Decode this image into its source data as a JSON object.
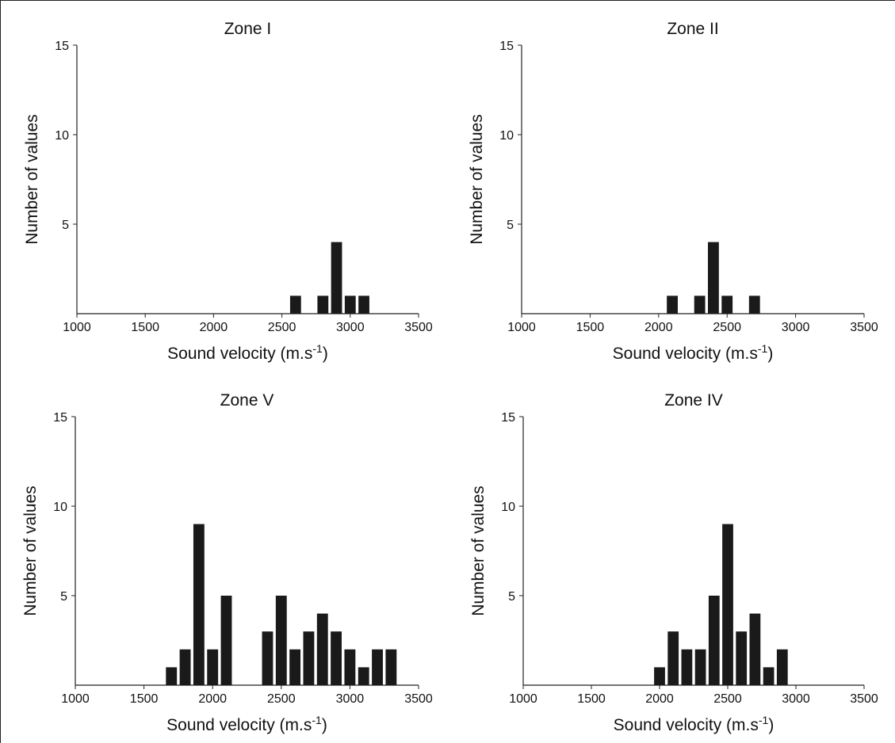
{
  "chart_data": [
    {
      "type": "bar",
      "title": "Zone I",
      "xlabel": "Sound velocity (m.s-1)",
      "xlabel_base": "Sound velocity (m.s",
      "xlabel_sup": "-1",
      "xlabel_end": ")",
      "ylabel": "Number of values",
      "xlim": [
        1000,
        3500
      ],
      "ylim": [
        0,
        15
      ],
      "xticks": [
        1000,
        1500,
        2000,
        2500,
        3000,
        3500
      ],
      "yticks": [
        5,
        10,
        15
      ],
      "bin_width": 100,
      "x": [
        2600,
        2800,
        2900,
        3000,
        3100
      ],
      "values": [
        1,
        1,
        4,
        1,
        1
      ]
    },
    {
      "type": "bar",
      "title": "Zone II",
      "xlabel": "Sound velocity (m.s-1)",
      "xlabel_base": "Sound velocity (m.s",
      "xlabel_sup": "-1",
      "xlabel_end": ")",
      "ylabel": "Number of values",
      "xlim": [
        1000,
        3500
      ],
      "ylim": [
        0,
        15
      ],
      "xticks": [
        1000,
        1500,
        2000,
        2500,
        3000,
        3500
      ],
      "yticks": [
        5,
        10,
        15
      ],
      "bin_width": 100,
      "x": [
        2100,
        2300,
        2400,
        2500,
        2700
      ],
      "values": [
        1,
        1,
        4,
        1,
        1
      ]
    },
    {
      "type": "bar",
      "title": "Zone V",
      "xlabel": "Sound velocity (m.s-1)",
      "xlabel_base": "Sound velocity (m.s",
      "xlabel_sup": "-1",
      "xlabel_end": ")",
      "ylabel": "Number of values",
      "xlim": [
        1000,
        3500
      ],
      "ylim": [
        0,
        15
      ],
      "xticks": [
        1000,
        1500,
        2000,
        2500,
        3000,
        3500
      ],
      "yticks": [
        5,
        10,
        15
      ],
      "bin_width": 100,
      "x": [
        1700,
        1800,
        1900,
        2000,
        2100,
        2400,
        2500,
        2600,
        2700,
        2800,
        2900,
        3000,
        3100,
        3200,
        3300
      ],
      "values": [
        1,
        2,
        9,
        2,
        5,
        3,
        5,
        2,
        3,
        4,
        3,
        2,
        1,
        2,
        2
      ]
    },
    {
      "type": "bar",
      "title": "Zone IV",
      "xlabel": "Sound velocity (m.s-1)",
      "xlabel_base": "Sound velocity (m.s",
      "xlabel_sup": "-1",
      "xlabel_end": ")",
      "ylabel": "Number of values",
      "xlim": [
        1000,
        3500
      ],
      "ylim": [
        0,
        15
      ],
      "xticks": [
        1000,
        1500,
        2000,
        2500,
        3000,
        3500
      ],
      "yticks": [
        5,
        10,
        15
      ],
      "bin_width": 100,
      "x": [
        2000,
        2100,
        2200,
        2300,
        2400,
        2500,
        2600,
        2700,
        2800,
        2900
      ],
      "values": [
        1,
        3,
        2,
        2,
        5,
        9,
        3,
        4,
        1,
        2
      ]
    }
  ],
  "colors": {
    "bar": "#1a1a1a",
    "axis": "#222222"
  }
}
